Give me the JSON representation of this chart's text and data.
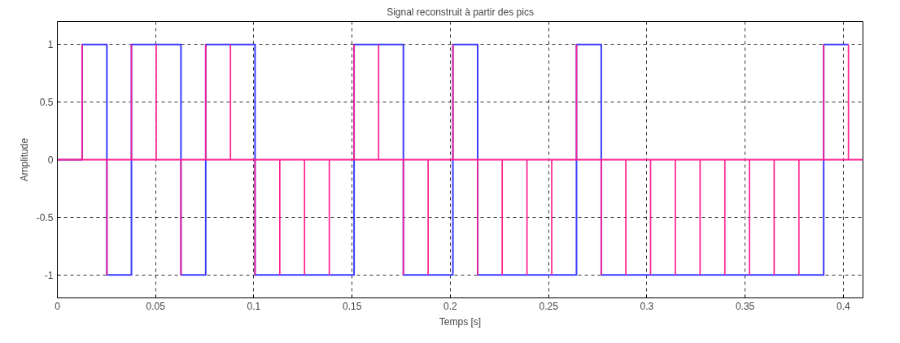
{
  "chart_data": {
    "type": "step",
    "title": "Signal reconstruit à partir des pics",
    "xlabel": "Temps [s]",
    "ylabel": "Amplitude",
    "xlim": [
      0,
      0.41
    ],
    "ylim": [
      -1.2,
      1.2
    ],
    "xticks": [
      0,
      0.05,
      0.1,
      0.15,
      0.2,
      0.25,
      0.3,
      0.35,
      0.4
    ],
    "yticks": [
      -1,
      -0.5,
      0,
      0.5,
      1
    ],
    "grid": true,
    "line_style": "solid",
    "ref_lines": [
      {
        "axis": "y",
        "value": 0,
        "color": "#ff1f8f"
      }
    ],
    "series": [
      {
        "color": "#3b3bff",
        "x": [
          0,
          0.0126,
          0.0252,
          0.0377,
          0.0503,
          0.0629,
          0.0755,
          0.0881,
          0.1006,
          0.1132,
          0.1258,
          0.1384,
          0.151,
          0.1635,
          0.1761,
          0.1887,
          0.2013,
          0.2139,
          0.2264,
          0.239,
          0.2516,
          0.2642,
          0.2768,
          0.2893,
          0.3019,
          0.3145,
          0.3271,
          0.3397,
          0.3522,
          0.3648,
          0.3774,
          0.39,
          0.4026
        ],
        "values": [
          0,
          1,
          -1,
          1,
          1,
          -1,
          1,
          1,
          -1,
          -1,
          -1,
          -1,
          1,
          1,
          -1,
          -1,
          1,
          -1,
          -1,
          -1,
          -1,
          1,
          -1,
          -1,
          -1,
          -1,
          -1,
          -1,
          -1,
          -1,
          -1,
          1,
          1
        ]
      },
      {
        "type": "bar",
        "color": "#ff1f8f",
        "x": [
          0.0126,
          0.0252,
          0.0377,
          0.0503,
          0.0629,
          0.0755,
          0.0881,
          0.1006,
          0.1132,
          0.1258,
          0.1384,
          0.151,
          0.1635,
          0.1761,
          0.1887,
          0.2013,
          0.2139,
          0.2264,
          0.239,
          0.2516,
          0.2642,
          0.2768,
          0.2893,
          0.3019,
          0.3145,
          0.3271,
          0.3397,
          0.3522,
          0.3648,
          0.3774,
          0.39,
          0.4026
        ],
        "values": [
          1,
          -1,
          1,
          1,
          -1,
          1,
          1,
          -1,
          -1,
          -1,
          -1,
          1,
          1,
          -1,
          -1,
          1,
          -1,
          -1,
          -1,
          -1,
          1,
          -1,
          -1,
          -1,
          -1,
          -1,
          -1,
          -1,
          -1,
          -1,
          1,
          1
        ]
      }
    ]
  }
}
